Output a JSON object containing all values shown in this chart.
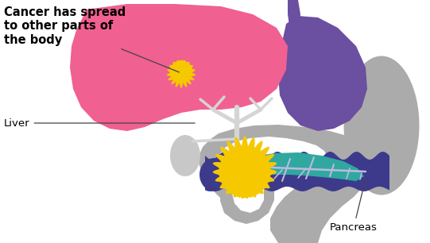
{
  "bg_color": "#ffffff",
  "liver_color": "#F06090",
  "stomach_color": "#6B4FA0",
  "gray_color": "#ABABAB",
  "gray_light": "#C8C8C8",
  "pancreas_color": "#3D3A8C",
  "teal_color": "#2FA8A0",
  "tumor_color": "#F5C800",
  "text_cancer": "Cancer has spread\nto other parts of\nthe body",
  "text_liver": "Liver",
  "text_pancreas": "Pancreas",
  "label_fontsize": 9.5,
  "bold_fontsize": 10.5
}
